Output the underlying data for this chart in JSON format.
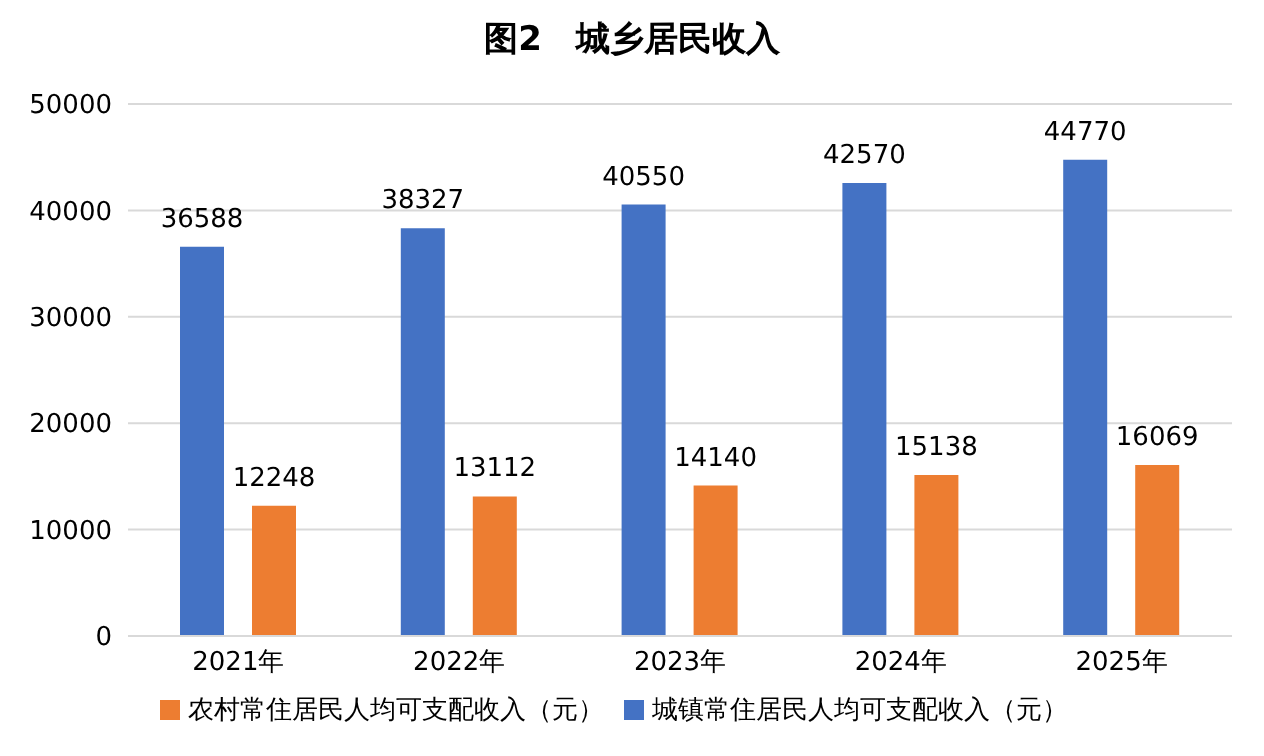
{
  "chart_data": {
    "type": "bar",
    "title": "图2　城乡居民收入",
    "categories": [
      "2021年",
      "2022年",
      "2023年",
      "2024年",
      "2025年"
    ],
    "series": [
      {
        "name": "城镇常住居民人均可支配收入（元）",
        "color": "#4472c4",
        "values": [
          36588,
          38327,
          40550,
          42570,
          44770
        ]
      },
      {
        "name": "农村常住居民人均可支配收入（元）",
        "color": "#ed7d31",
        "values": [
          12248,
          13112,
          14140,
          15138,
          16069
        ]
      }
    ],
    "ylim": [
      0,
      50000
    ],
    "yticks": [
      0,
      10000,
      20000,
      30000,
      40000,
      50000
    ],
    "grid": "y",
    "legend": "bottom",
    "data_labels": true
  }
}
